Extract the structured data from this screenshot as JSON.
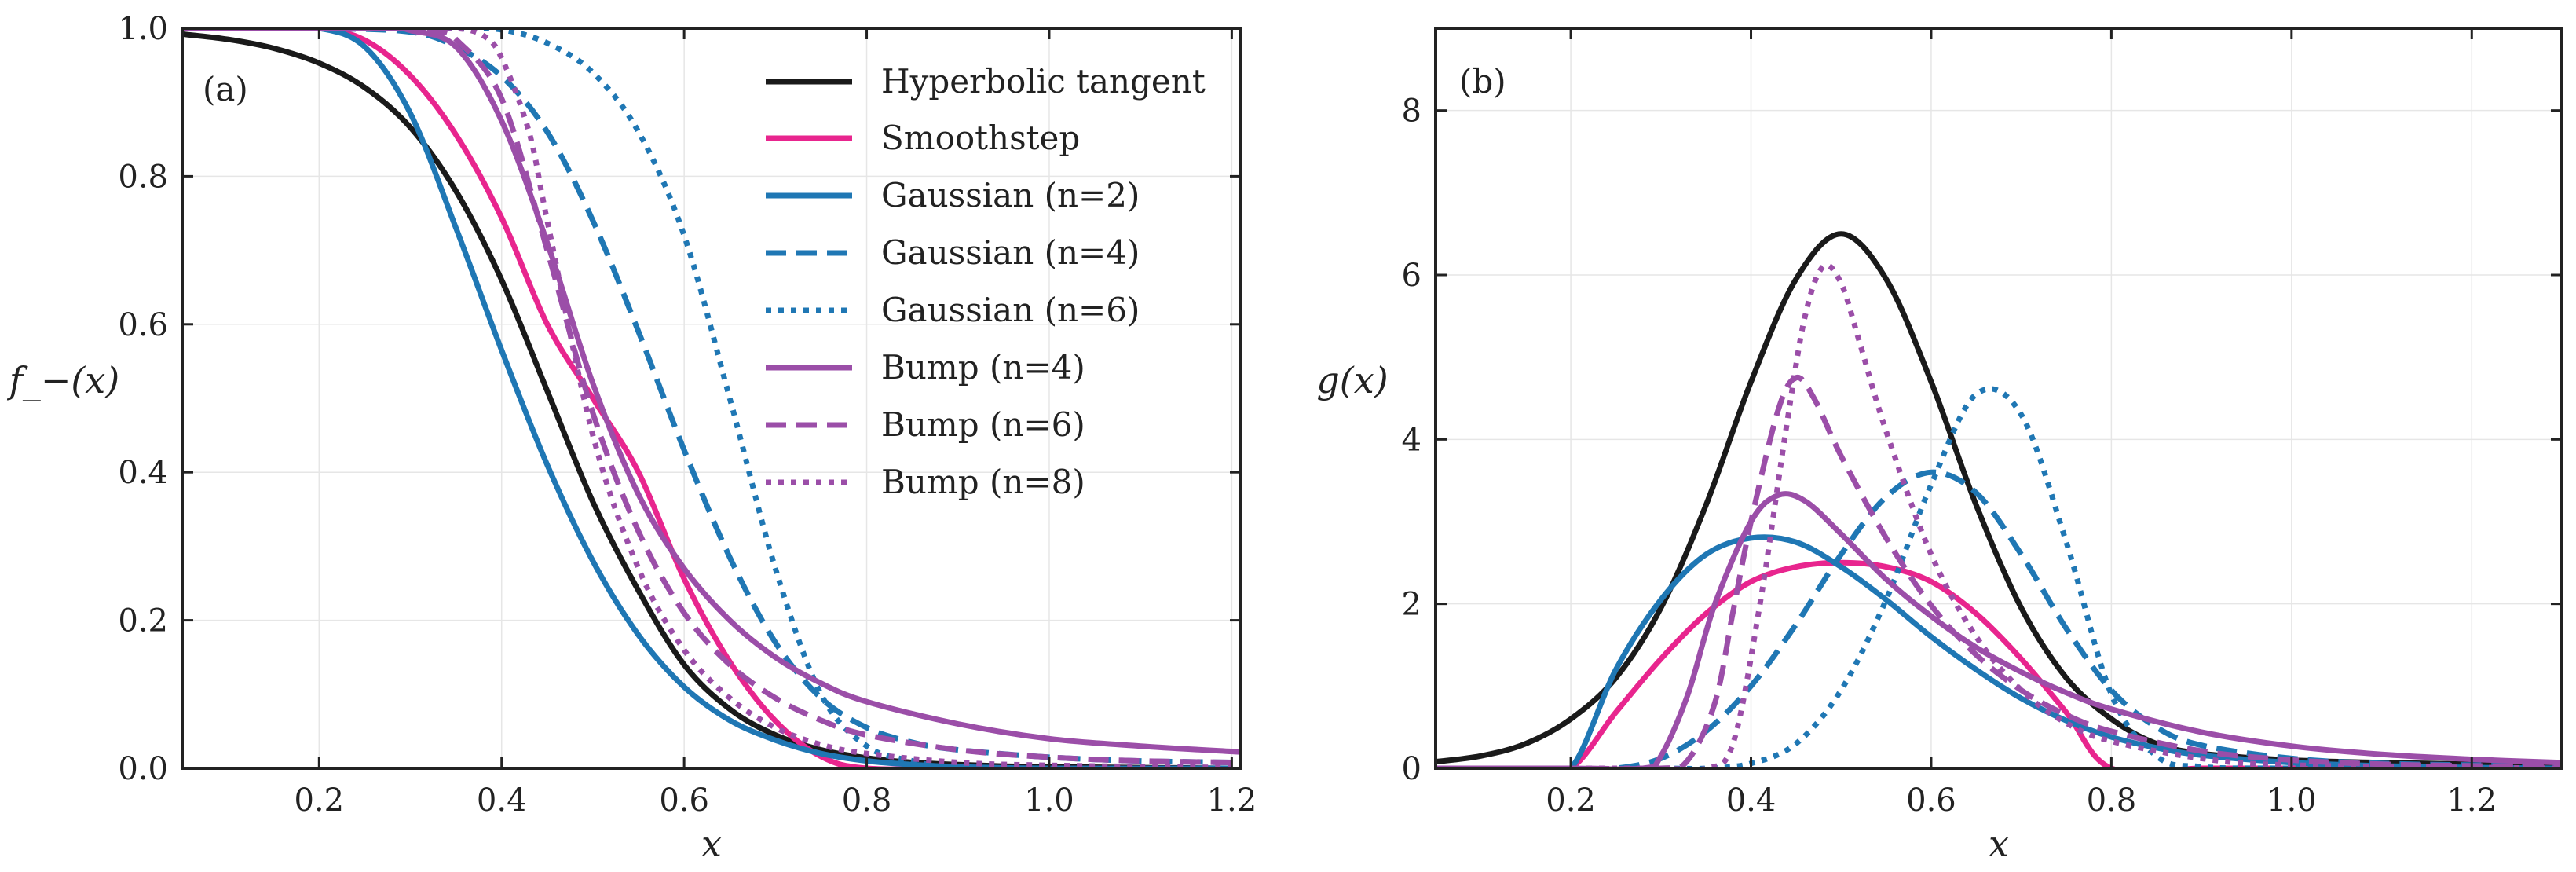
{
  "chart_data": [
    {
      "panel": "(a)",
      "type": "line",
      "xlabel": "x",
      "ylabel": "f_−(x)",
      "xlim": [
        0.05,
        1.21
      ],
      "ylim": [
        0.0,
        1.0
      ],
      "x_ticks": [
        0.2,
        0.4,
        0.6,
        0.8,
        1.0,
        1.2
      ],
      "x_tick_labels": [
        "0.2",
        "0.4",
        "0.6",
        "0.8",
        "1.0",
        "1.2"
      ],
      "y_ticks": [
        0.0,
        0.2,
        0.4,
        0.6,
        0.8,
        1.0
      ],
      "y_tick_labels": [
        "0.0",
        "0.2",
        "0.4",
        "0.6",
        "0.8",
        "1.0"
      ],
      "grid": true,
      "legend_position": "top-right",
      "series": [
        {
          "name": "Hyperbolic tangent",
          "color": "#1a1a1a",
          "dash": "solid",
          "x": [
            0.05,
            0.1,
            0.15,
            0.2,
            0.25,
            0.3,
            0.35,
            0.4,
            0.45,
            0.5,
            0.55,
            0.6,
            0.65,
            0.7,
            0.75,
            0.8,
            0.85,
            0.9,
            0.95,
            1.0,
            1.1,
            1.2
          ],
          "y": [
            0.992,
            0.985,
            0.973,
            0.953,
            0.92,
            0.866,
            0.78,
            0.66,
            0.51,
            0.36,
            0.24,
            0.14,
            0.08,
            0.045,
            0.025,
            0.014,
            0.008,
            0.005,
            0.003,
            0.002,
            0.001,
            0.0
          ]
        },
        {
          "name": "Smoothstep",
          "color": "#e8258e",
          "dash": "solid",
          "x": [
            0.05,
            0.1,
            0.15,
            0.2,
            0.25,
            0.3,
            0.35,
            0.4,
            0.45,
            0.5,
            0.55,
            0.6,
            0.65,
            0.7,
            0.75,
            0.8,
            0.9,
            1.0,
            1.2
          ],
          "y": [
            1.0,
            1.0,
            1.0,
            1.0,
            0.984,
            0.936,
            0.856,
            0.744,
            0.6,
            0.5,
            0.4,
            0.256,
            0.144,
            0.064,
            0.016,
            0.0,
            0.0,
            0.0,
            0.0
          ]
        },
        {
          "name": "Gaussian (n=2)",
          "color": "#1f77b4",
          "dash": "solid",
          "x": [
            0.05,
            0.1,
            0.15,
            0.2,
            0.25,
            0.3,
            0.35,
            0.4,
            0.45,
            0.5,
            0.55,
            0.6,
            0.65,
            0.7,
            0.75,
            0.8,
            0.85,
            0.9,
            1.0,
            1.2
          ],
          "y": [
            1.0,
            1.0,
            1.0,
            1.0,
            0.975,
            0.885,
            0.73,
            0.565,
            0.41,
            0.28,
            0.18,
            0.11,
            0.065,
            0.038,
            0.02,
            0.01,
            0.005,
            0.002,
            0.0,
            0.0
          ]
        },
        {
          "name": "Gaussian (n=4)",
          "color": "#1f77b4",
          "dash": "dashed",
          "x": [
            0.05,
            0.1,
            0.2,
            0.3,
            0.35,
            0.4,
            0.45,
            0.5,
            0.55,
            0.6,
            0.65,
            0.7,
            0.75,
            0.8,
            0.85,
            0.9,
            1.0,
            1.1,
            1.2
          ],
          "y": [
            1.0,
            1.0,
            1.0,
            0.995,
            0.975,
            0.935,
            0.86,
            0.74,
            0.59,
            0.43,
            0.285,
            0.17,
            0.095,
            0.055,
            0.035,
            0.025,
            0.015,
            0.01,
            0.008
          ]
        },
        {
          "name": "Gaussian (n=6)",
          "color": "#1f77b4",
          "dash": "dotted",
          "x": [
            0.05,
            0.1,
            0.2,
            0.3,
            0.35,
            0.4,
            0.45,
            0.5,
            0.55,
            0.6,
            0.65,
            0.7,
            0.75,
            0.8,
            0.85,
            0.9,
            1.0,
            1.2
          ],
          "y": [
            1.0,
            1.0,
            1.0,
            1.0,
            1.0,
            0.998,
            0.98,
            0.94,
            0.86,
            0.72,
            0.5,
            0.27,
            0.1,
            0.03,
            0.01,
            0.0,
            0.0,
            0.0
          ]
        },
        {
          "name": "Bump (n=4)",
          "color": "#9b4ea8",
          "dash": "solid",
          "x": [
            0.05,
            0.1,
            0.2,
            0.28,
            0.3,
            0.35,
            0.4,
            0.45,
            0.5,
            0.55,
            0.6,
            0.65,
            0.7,
            0.75,
            0.8,
            0.9,
            1.0,
            1.1,
            1.21
          ],
          "y": [
            1.0,
            1.0,
            1.0,
            1.0,
            0.997,
            0.975,
            0.875,
            0.71,
            0.52,
            0.37,
            0.27,
            0.2,
            0.15,
            0.115,
            0.09,
            0.06,
            0.04,
            0.03,
            0.022
          ]
        },
        {
          "name": "Bump (n=6)",
          "color": "#9b4ea8",
          "dash": "dashed",
          "x": [
            0.05,
            0.1,
            0.2,
            0.3,
            0.33,
            0.35,
            0.4,
            0.45,
            0.5,
            0.55,
            0.6,
            0.65,
            0.7,
            0.75,
            0.8,
            0.9,
            1.0,
            1.1,
            1.2
          ],
          "y": [
            1.0,
            1.0,
            1.0,
            1.0,
            0.995,
            0.985,
            0.905,
            0.7,
            0.48,
            0.32,
            0.21,
            0.14,
            0.095,
            0.065,
            0.045,
            0.025,
            0.015,
            0.01,
            0.008
          ]
        },
        {
          "name": "Bump (n=8)",
          "color": "#9b4ea8",
          "dash": "dotted",
          "x": [
            0.05,
            0.1,
            0.2,
            0.3,
            0.35,
            0.38,
            0.4,
            0.43,
            0.45,
            0.5,
            0.55,
            0.6,
            0.65,
            0.7,
            0.75,
            0.8,
            0.9,
            1.0,
            1.2
          ],
          "y": [
            1.0,
            1.0,
            1.0,
            1.0,
            1.0,
            0.99,
            0.96,
            0.86,
            0.74,
            0.45,
            0.27,
            0.16,
            0.095,
            0.055,
            0.032,
            0.02,
            0.008,
            0.004,
            0.001
          ]
        }
      ]
    },
    {
      "panel": "(b)",
      "type": "line",
      "xlabel": "x",
      "ylabel": "g(x)",
      "xlim": [
        0.05,
        1.3
      ],
      "ylim": [
        0,
        9
      ],
      "x_ticks": [
        0.2,
        0.4,
        0.6,
        0.8,
        1.0,
        1.2
      ],
      "x_tick_labels": [
        "0.2",
        "0.4",
        "0.6",
        "0.8",
        "1.0",
        "1.2"
      ],
      "y_ticks": [
        0,
        2,
        4,
        6,
        8
      ],
      "y_tick_labels": [
        "0",
        "2",
        "4",
        "6",
        "8"
      ],
      "grid": true,
      "series": [
        {
          "name": "Hyperbolic tangent",
          "color": "#1a1a1a",
          "dash": "solid",
          "x": [
            0.05,
            0.1,
            0.15,
            0.2,
            0.25,
            0.3,
            0.35,
            0.4,
            0.45,
            0.5,
            0.55,
            0.6,
            0.65,
            0.7,
            0.75,
            0.8,
            0.85,
            0.9,
            1.0,
            1.1,
            1.2,
            1.3
          ],
          "y": [
            0.08,
            0.15,
            0.3,
            0.6,
            1.1,
            1.95,
            3.2,
            4.7,
            5.95,
            6.5,
            5.95,
            4.7,
            3.2,
            1.95,
            1.1,
            0.6,
            0.3,
            0.18,
            0.1,
            0.07,
            0.05,
            0.03
          ]
        },
        {
          "name": "Smoothstep",
          "color": "#e8258e",
          "dash": "solid",
          "x": [
            0.05,
            0.1,
            0.15,
            0.2,
            0.25,
            0.3,
            0.35,
            0.4,
            0.45,
            0.5,
            0.55,
            0.6,
            0.65,
            0.7,
            0.75,
            0.8,
            0.9,
            1.0,
            1.3
          ],
          "y": [
            0.0,
            0.0,
            0.0,
            0.0,
            0.68,
            1.33,
            1.88,
            2.27,
            2.45,
            2.5,
            2.45,
            2.27,
            1.88,
            1.33,
            0.68,
            0.0,
            0.0,
            0.0,
            0.0
          ]
        },
        {
          "name": "Gaussian (n=2)",
          "color": "#1f77b4",
          "dash": "solid",
          "x": [
            0.05,
            0.1,
            0.15,
            0.2,
            0.25,
            0.3,
            0.35,
            0.4,
            0.45,
            0.5,
            0.55,
            0.6,
            0.65,
            0.7,
            0.75,
            0.8,
            0.85,
            0.9,
            1.0,
            1.1,
            1.2,
            1.3
          ],
          "y": [
            0.0,
            0.0,
            0.0,
            0.0,
            1.2,
            2.05,
            2.6,
            2.8,
            2.75,
            2.45,
            2.05,
            1.6,
            1.2,
            0.85,
            0.58,
            0.38,
            0.25,
            0.16,
            0.07,
            0.03,
            0.01,
            0.0
          ]
        },
        {
          "name": "Gaussian (n=4)",
          "color": "#1f77b4",
          "dash": "dashed",
          "x": [
            0.05,
            0.1,
            0.2,
            0.25,
            0.3,
            0.35,
            0.4,
            0.45,
            0.5,
            0.55,
            0.6,
            0.65,
            0.7,
            0.75,
            0.8,
            0.85,
            0.9,
            1.0,
            1.1,
            1.2,
            1.3
          ],
          "y": [
            0.0,
            0.0,
            0.0,
            0.0,
            0.12,
            0.45,
            1.0,
            1.75,
            2.6,
            3.3,
            3.6,
            3.35,
            2.6,
            1.7,
            0.95,
            0.5,
            0.28,
            0.12,
            0.06,
            0.04,
            0.03
          ]
        },
        {
          "name": "Gaussian (n=6)",
          "color": "#1f77b4",
          "dash": "dotted",
          "x": [
            0.05,
            0.1,
            0.2,
            0.3,
            0.35,
            0.4,
            0.45,
            0.5,
            0.55,
            0.6,
            0.65,
            0.7,
            0.75,
            0.8,
            0.85,
            0.9,
            1.0,
            1.3
          ],
          "y": [
            0.0,
            0.0,
            0.0,
            0.0,
            0.0,
            0.06,
            0.3,
            0.95,
            2.05,
            3.45,
            4.55,
            4.3,
            2.75,
            0.9,
            0.15,
            0.02,
            0.0,
            0.0
          ]
        },
        {
          "name": "Bump (n=4)",
          "color": "#9b4ea8",
          "dash": "solid",
          "x": [
            0.05,
            0.1,
            0.2,
            0.28,
            0.3,
            0.33,
            0.36,
            0.4,
            0.43,
            0.46,
            0.5,
            0.55,
            0.6,
            0.65,
            0.7,
            0.75,
            0.8,
            0.9,
            1.0,
            1.1,
            1.2,
            1.3
          ],
          "y": [
            0.0,
            0.0,
            0.0,
            0.0,
            0.15,
            0.9,
            2.0,
            3.0,
            3.32,
            3.25,
            2.85,
            2.3,
            1.85,
            1.47,
            1.17,
            0.92,
            0.72,
            0.44,
            0.27,
            0.17,
            0.11,
            0.07
          ]
        },
        {
          "name": "Bump (n=6)",
          "color": "#9b4ea8",
          "dash": "dashed",
          "x": [
            0.05,
            0.1,
            0.2,
            0.3,
            0.33,
            0.36,
            0.38,
            0.4,
            0.43,
            0.45,
            0.47,
            0.5,
            0.55,
            0.6,
            0.65,
            0.7,
            0.75,
            0.8,
            0.9,
            1.0,
            1.1,
            1.2,
            1.3
          ],
          "y": [
            0.0,
            0.0,
            0.0,
            0.0,
            0.1,
            0.8,
            1.9,
            3.0,
            4.35,
            4.75,
            4.5,
            3.8,
            2.8,
            1.98,
            1.38,
            0.95,
            0.65,
            0.45,
            0.21,
            0.1,
            0.05,
            0.03,
            0.02
          ]
        },
        {
          "name": "Bump (n=8)",
          "color": "#9b4ea8",
          "dash": "dotted",
          "x": [
            0.05,
            0.1,
            0.2,
            0.3,
            0.35,
            0.38,
            0.41,
            0.44,
            0.46,
            0.48,
            0.5,
            0.52,
            0.55,
            0.6,
            0.65,
            0.7,
            0.75,
            0.8,
            0.9,
            1.0,
            1.3
          ],
          "y": [
            0.0,
            0.0,
            0.0,
            0.0,
            0.0,
            0.3,
            2.0,
            4.2,
            5.5,
            6.1,
            5.9,
            5.2,
            4.1,
            2.6,
            1.6,
            0.95,
            0.55,
            0.33,
            0.12,
            0.04,
            0.0
          ]
        }
      ]
    }
  ]
}
